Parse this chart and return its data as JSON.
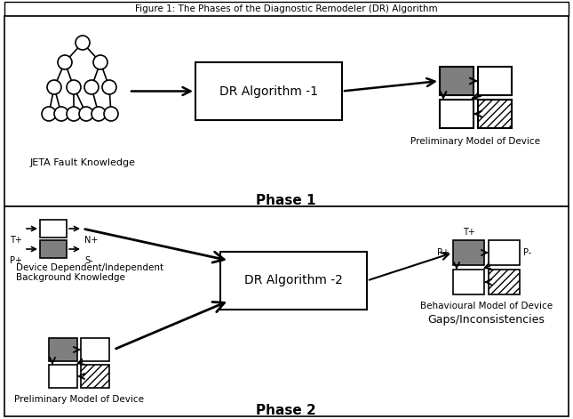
{
  "title": "Figure 1: The Phases of the Diagnostic Remodeler (DR) Algorithm",
  "phase1_label": "Phase 1",
  "phase2_label": "Phase 2",
  "dr_algo1_label": "DR Algorithm -1",
  "dr_algo2_label": "DR Algorithm -2",
  "jeta_label": "JETA Fault Knowledge",
  "prelim_label": "Preliminary Model of Device",
  "prelim_label2": "Preliminary Model of Device",
  "bgknow_label1": "Device Dependent/Independent",
  "bgknow_label2": "Background Knowledge",
  "behav_label": "Behavioural Model of Device",
  "gaps_label": "Gaps/Inconsistencies",
  "gray_color": "#7f7f7f",
  "bg_color": "#ffffff"
}
